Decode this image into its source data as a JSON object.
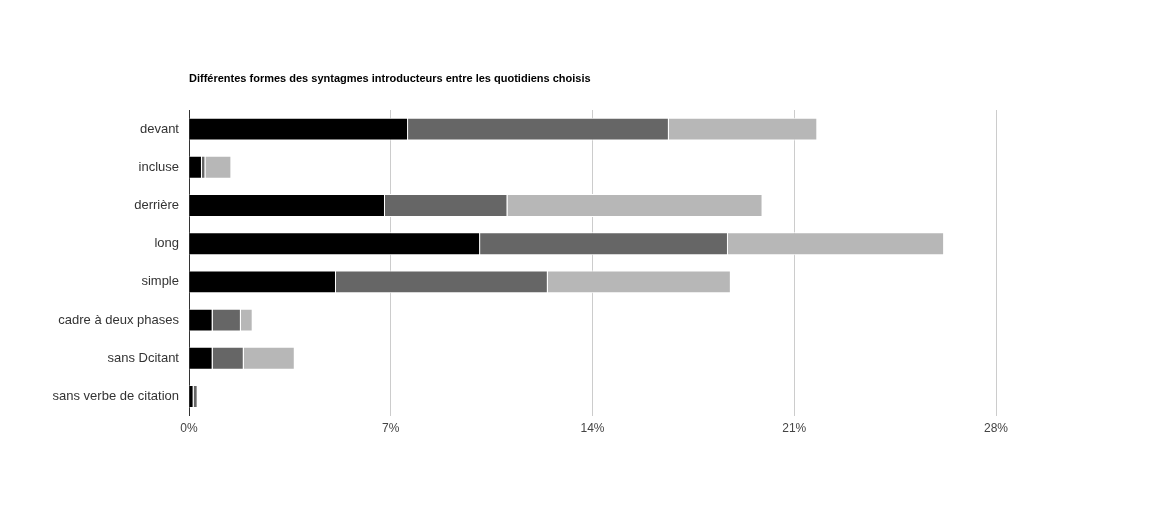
{
  "chart_data": {
    "type": "bar",
    "orientation": "horizontal",
    "stacked": true,
    "title": "Différentes formes des syntagmes introducteurs entre les quotidiens choisis",
    "categories": [
      "devant",
      "incluse",
      "derrière",
      "long",
      "simple",
      "cadre à deux phases",
      "sans Dcitant",
      "sans verbe de citation"
    ],
    "series": [
      {
        "color": "#000000",
        "values": [
          7.6,
          0.45,
          6.8,
          10.1,
          5.1,
          0.82,
          0.82,
          0.16
        ]
      },
      {
        "color": "#666666",
        "values": [
          9.05,
          0.12,
          4.25,
          8.6,
          7.35,
          0.98,
          1.08,
          0.14
        ]
      },
      {
        "color": "#b7b7b7",
        "values": [
          5.15,
          0.9,
          8.85,
          7.5,
          6.35,
          0.41,
          1.77,
          0
        ]
      }
    ],
    "xlim": [
      0,
      28
    ],
    "xticks": [
      {
        "value": 0,
        "label": "0%"
      },
      {
        "value": 7,
        "label": "7%"
      },
      {
        "value": 14,
        "label": "14%"
      },
      {
        "value": 21,
        "label": "21%"
      },
      {
        "value": 28,
        "label": "28%"
      }
    ],
    "grid": "x"
  }
}
